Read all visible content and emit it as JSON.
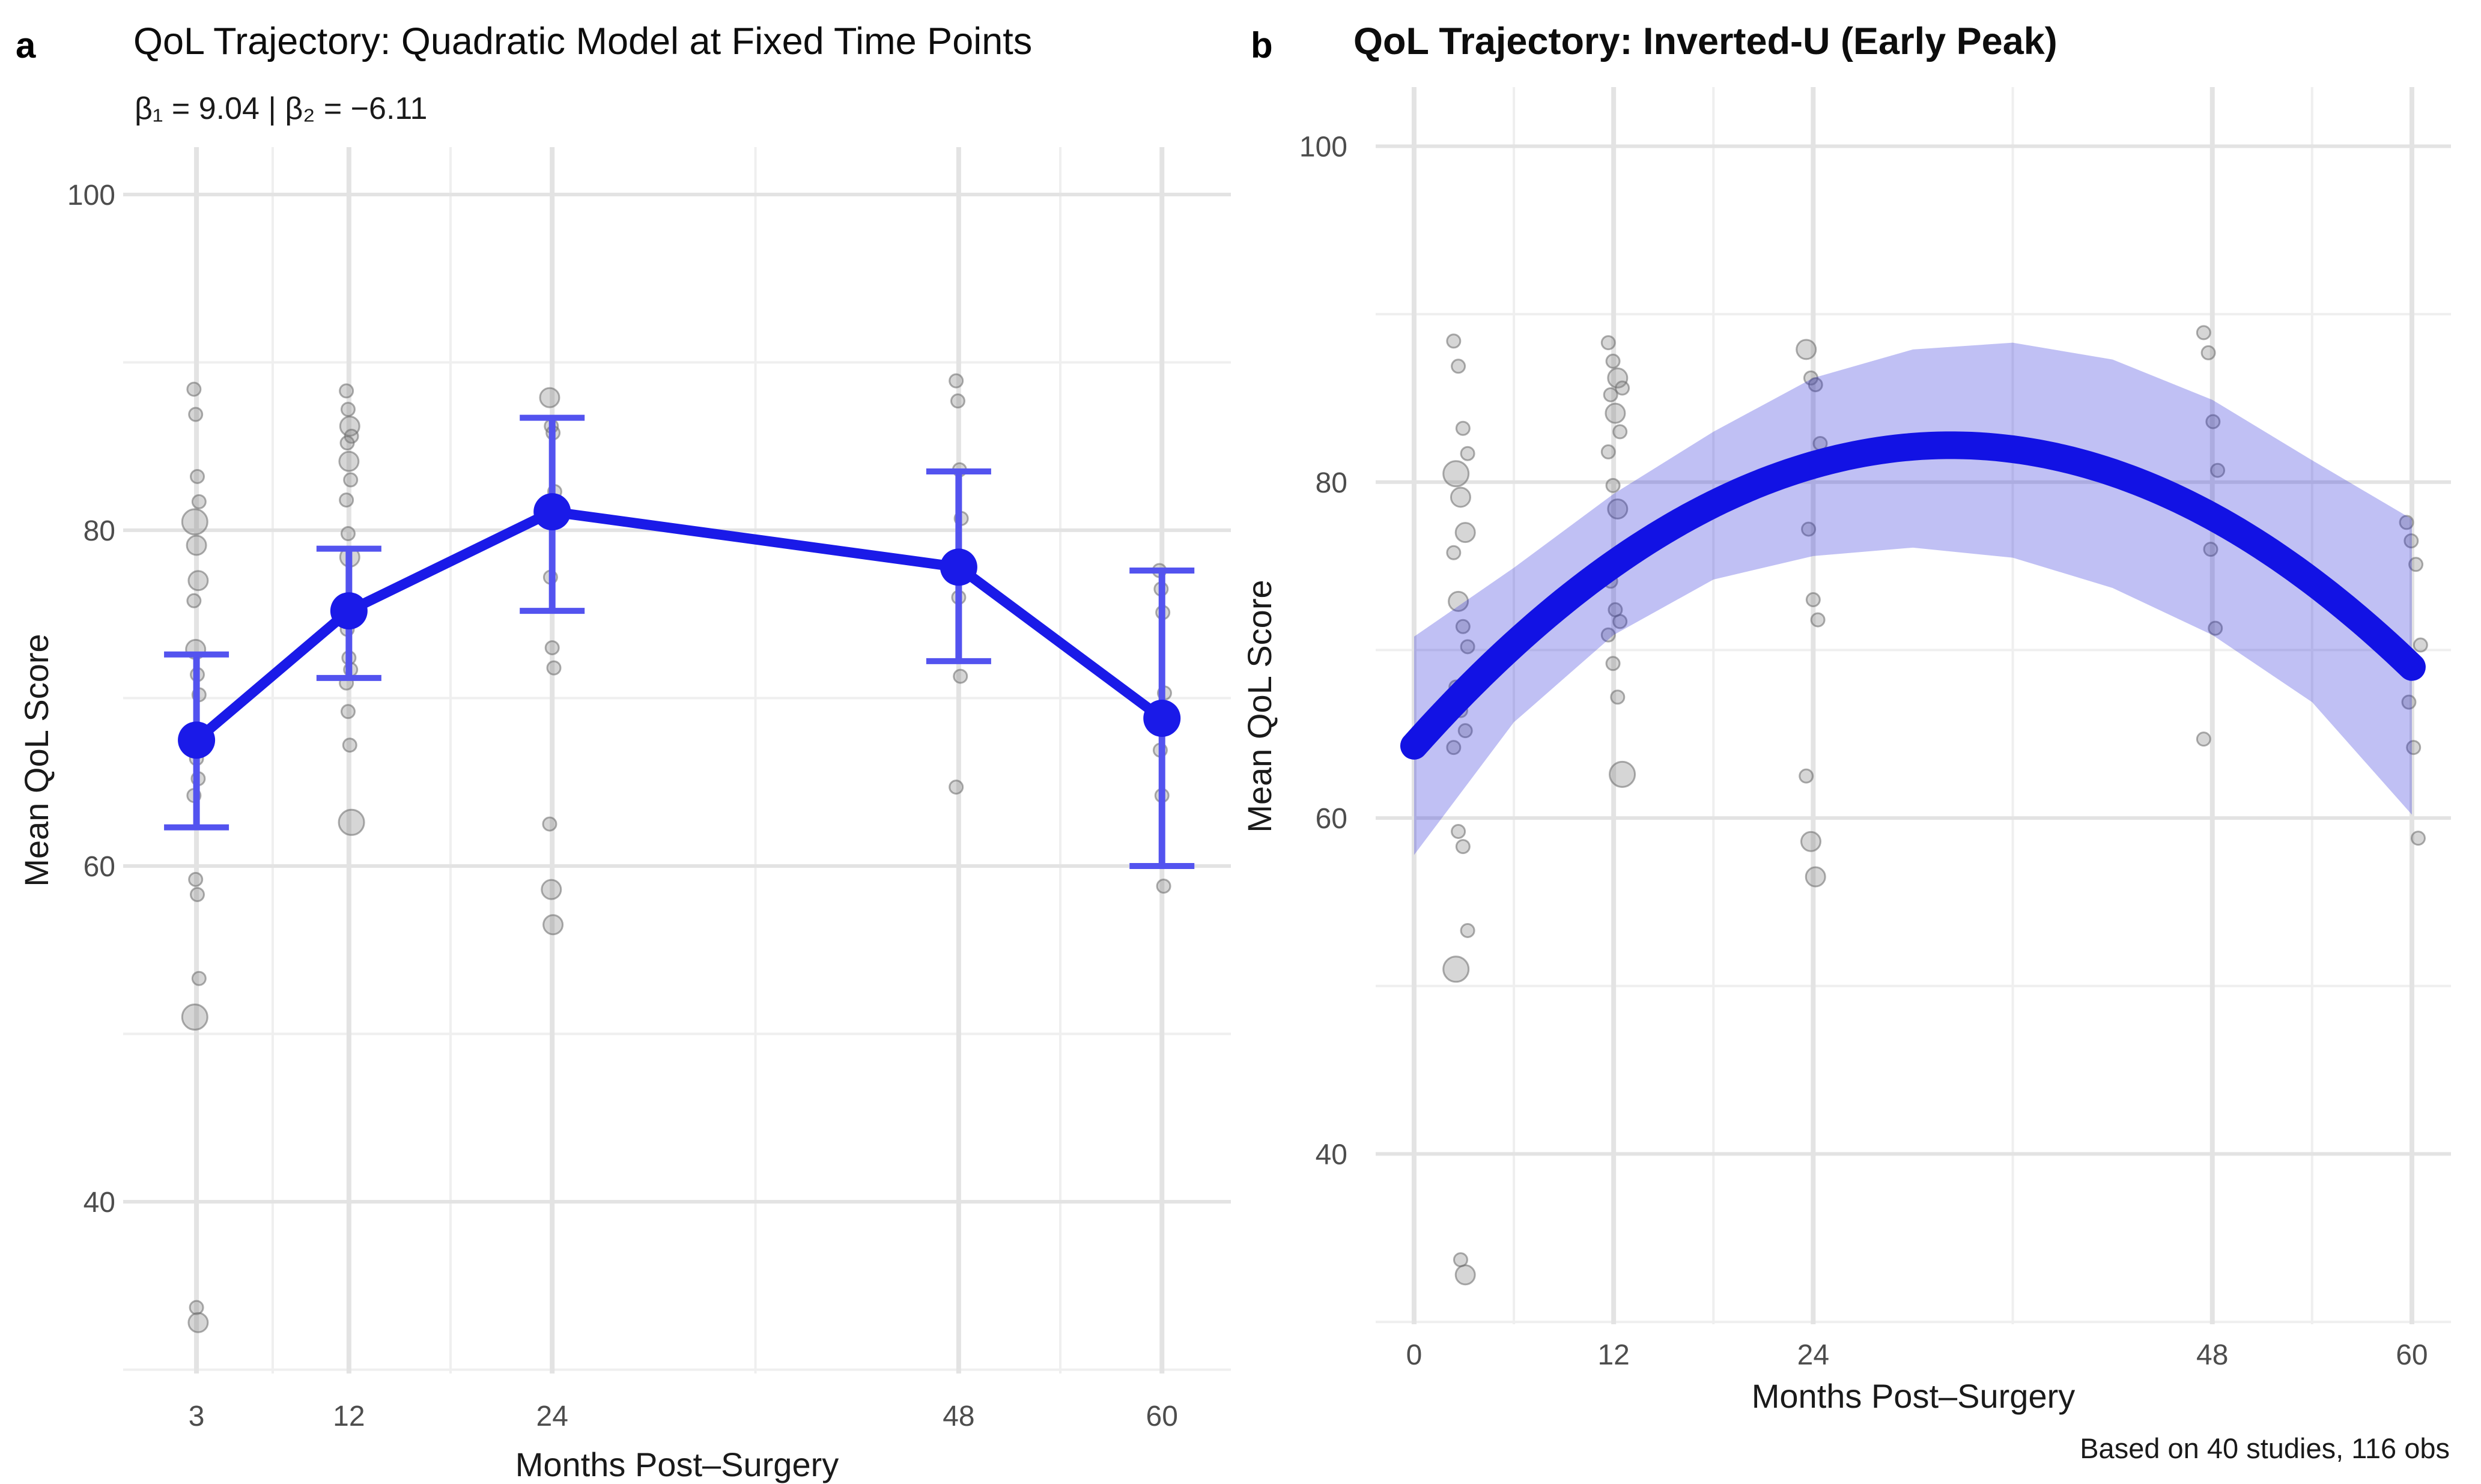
{
  "figure": {
    "panel_a_tag": "a",
    "panel_b_tag": "b"
  },
  "colors": {
    "model_blue": "#1a1ae8",
    "errorbar_blue": "#5353ef",
    "curve_blue": "#1212e4",
    "ribbon_blue": "#1e1ed7",
    "ribbon_opacity": 0.28,
    "gray_point_fill": "#808080",
    "gray_point_stroke": "#696969",
    "grid_major": "#e3e3e3",
    "grid_minor": "#efefef",
    "tick_text": "#4d4d4d"
  },
  "chart_data": [
    {
      "type": "line",
      "panel": "a",
      "title": "QoL Trajectory: Quadratic Model at Fixed Time Points",
      "subtitle": "β₁ = 9.04 | β₂ = −6.11",
      "xlabel": "Months Post–Surgery",
      "ylabel": "Mean QoL Score",
      "x_ticks": [
        3,
        12,
        24,
        48,
        60
      ],
      "x_minor": [
        7.5,
        18,
        36,
        54
      ],
      "y_ticks": [
        40,
        60,
        80,
        100
      ],
      "y_minor": [
        30,
        50,
        70,
        90
      ],
      "xlim": [
        -1.33,
        64.07
      ],
      "ylim": [
        29.77,
        102.82
      ],
      "grid": true,
      "legend": "none",
      "series": {
        "x": [
          3,
          12,
          24,
          48,
          60
        ],
        "y": [
          67.5,
          75.2,
          81.1,
          77.8,
          68.8
        ],
        "ci_low": [
          62.3,
          71.2,
          75.2,
          72.2,
          60.0
        ],
        "ci_high": [
          72.6,
          78.9,
          86.7,
          83.5,
          77.6
        ]
      },
      "scatter": {
        "description": "study observations, point size proportional to weight",
        "clusters": [
          {
            "x": 3,
            "points": [
              [
                88.4,
                1
              ],
              [
                86.9,
                1
              ],
              [
                83.2,
                1
              ],
              [
                81.7,
                1
              ],
              [
                80.5,
                3
              ],
              [
                79.1,
                2
              ],
              [
                77.0,
                2
              ],
              [
                75.8,
                1
              ],
              [
                72.9,
                2
              ],
              [
                71.4,
                1
              ],
              [
                70.2,
                1
              ],
              [
                67.8,
                1
              ],
              [
                66.4,
                1
              ],
              [
                65.2,
                1
              ],
              [
                64.2,
                1
              ],
              [
                59.2,
                1
              ],
              [
                58.3,
                1
              ],
              [
                53.3,
                1
              ],
              [
                51.0,
                3
              ],
              [
                33.7,
                1
              ],
              [
                32.8,
                2
              ]
            ]
          },
          {
            "x": 12,
            "points": [
              [
                88.3,
                1
              ],
              [
                87.2,
                1
              ],
              [
                86.2,
                2
              ],
              [
                85.6,
                1
              ],
              [
                85.2,
                1
              ],
              [
                84.1,
                2
              ],
              [
                83.0,
                1
              ],
              [
                81.8,
                1
              ],
              [
                79.8,
                1
              ],
              [
                78.4,
                2
              ],
              [
                75.3,
                2
              ],
              [
                74.1,
                1
              ],
              [
                72.4,
                1
              ],
              [
                71.7,
                1
              ],
              [
                70.9,
                1
              ],
              [
                69.2,
                1
              ],
              [
                67.2,
                1
              ],
              [
                62.6,
                3
              ]
            ]
          },
          {
            "x": 24,
            "points": [
              [
                87.9,
                2
              ],
              [
                86.2,
                1
              ],
              [
                85.8,
                1
              ],
              [
                82.3,
                1
              ],
              [
                77.2,
                1
              ],
              [
                73.0,
                1
              ],
              [
                71.8,
                1
              ],
              [
                62.5,
                1
              ],
              [
                58.6,
                2
              ],
              [
                56.5,
                2
              ]
            ]
          },
          {
            "x": 48,
            "points": [
              [
                88.9,
                1
              ],
              [
                87.7,
                1
              ],
              [
                83.6,
                1
              ],
              [
                80.7,
                1
              ],
              [
                78.3,
                1
              ],
              [
                76.0,
                1
              ],
              [
                71.3,
                1
              ],
              [
                64.7,
                1
              ]
            ]
          },
          {
            "x": 60,
            "points": [
              [
                77.6,
                1
              ],
              [
                76.5,
                1
              ],
              [
                75.1,
                1
              ],
              [
                70.3,
                1
              ],
              [
                66.9,
                1
              ],
              [
                64.2,
                1
              ],
              [
                58.8,
                1
              ]
            ]
          }
        ]
      }
    },
    {
      "type": "line",
      "panel": "b",
      "title": "QoL Trajectory: Inverted-U (Early Peak)",
      "xlabel": "Months Post–Surgery",
      "ylabel": "Mean QoL Score",
      "caption": "Based on 40 studies, 116 obs",
      "x_ticks": [
        0,
        12,
        24,
        48,
        60
      ],
      "x_minor": [
        6,
        18,
        36,
        54
      ],
      "y_ticks": [
        40,
        60,
        80,
        100
      ],
      "y_minor": [
        30,
        50,
        70,
        90
      ],
      "xlim": [
        -2.31,
        62.35
      ],
      "ylim": [
        29.86,
        103.52
      ],
      "grid": true,
      "legend": "none",
      "curve": {
        "form": "quadratic",
        "intercept": 64.3,
        "linear": 1.109,
        "quadratic": -0.01718,
        "x_range": [
          0,
          60
        ],
        "peak": {
          "x": 32.3,
          "y": 82.2
        }
      },
      "ribbon": {
        "x": [
          0,
          6,
          12,
          18,
          24,
          30,
          36,
          42,
          48,
          54,
          60
        ],
        "fit": [
          64.3,
          70.3,
          75.1,
          78.7,
          81.0,
          82.1,
          82.0,
          80.6,
          77.9,
          74.1,
          69.0
        ],
        "hi": [
          70.8,
          74.9,
          79.3,
          83.0,
          86.2,
          87.9,
          88.3,
          87.3,
          84.9,
          81.3,
          77.8
        ],
        "lo": [
          57.8,
          65.7,
          70.9,
          74.2,
          75.6,
          76.1,
          75.5,
          73.7,
          70.9,
          66.9,
          60.2
        ]
      },
      "scatter": {
        "description": "same study observations plotted at observed months, size proportional to weight",
        "clusters": [
          {
            "x": 2.8,
            "points": [
              [
                88.4,
                1
              ],
              [
                86.9,
                1
              ],
              [
                83.2,
                1
              ],
              [
                81.7,
                1
              ],
              [
                80.5,
                3
              ],
              [
                79.1,
                2
              ],
              [
                77.0,
                2
              ],
              [
                75.8,
                1
              ],
              [
                72.9,
                2
              ],
              [
                71.4,
                1
              ],
              [
                70.2,
                1
              ],
              [
                67.8,
                1
              ],
              [
                66.4,
                1
              ],
              [
                65.2,
                1
              ],
              [
                64.2,
                1
              ],
              [
                59.2,
                1
              ],
              [
                58.3,
                1
              ],
              [
                53.3,
                1
              ],
              [
                51.0,
                3
              ],
              [
                33.7,
                1
              ],
              [
                32.8,
                2
              ]
            ]
          },
          {
            "x": 12.1,
            "points": [
              [
                88.3,
                1
              ],
              [
                87.2,
                1
              ],
              [
                86.2,
                2
              ],
              [
                85.6,
                1
              ],
              [
                85.2,
                1
              ],
              [
                84.1,
                2
              ],
              [
                83.0,
                1
              ],
              [
                81.8,
                1
              ],
              [
                79.8,
                1
              ],
              [
                78.4,
                2
              ],
              [
                75.3,
                2
              ],
              [
                74.1,
                1
              ],
              [
                72.4,
                1
              ],
              [
                71.7,
                1
              ],
              [
                70.9,
                1
              ],
              [
                69.2,
                1
              ],
              [
                67.2,
                1
              ],
              [
                62.6,
                3
              ]
            ]
          },
          {
            "x": 24,
            "points": [
              [
                87.9,
                2
              ],
              [
                86.2,
                1
              ],
              [
                85.8,
                1
              ],
              [
                82.3,
                1
              ],
              [
                77.2,
                1
              ],
              [
                73.0,
                1
              ],
              [
                71.8,
                1
              ],
              [
                62.5,
                1
              ],
              [
                58.6,
                2
              ],
              [
                56.5,
                2
              ]
            ]
          },
          {
            "x": 47.9,
            "points": [
              [
                88.9,
                1
              ],
              [
                87.7,
                1
              ],
              [
                83.6,
                1
              ],
              [
                80.7,
                1
              ],
              [
                78.3,
                1
              ],
              [
                76.0,
                1
              ],
              [
                71.3,
                1
              ],
              [
                64.7,
                1
              ]
            ]
          },
          {
            "x": 60.1,
            "points": [
              [
                77.6,
                1
              ],
              [
                76.5,
                1
              ],
              [
                75.1,
                1
              ],
              [
                70.3,
                1
              ],
              [
                66.9,
                1
              ],
              [
                64.2,
                1
              ],
              [
                58.8,
                1
              ]
            ]
          }
        ]
      }
    }
  ]
}
